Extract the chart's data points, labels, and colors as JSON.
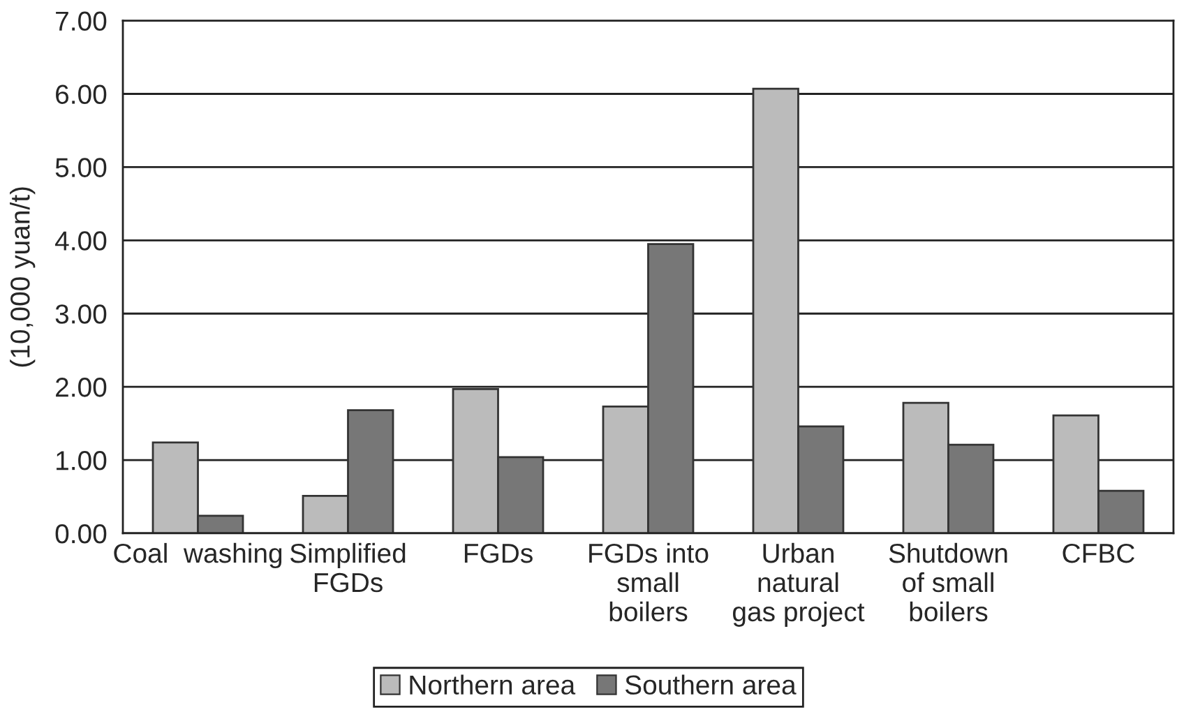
{
  "chart_data": {
    "type": "bar",
    "ylabel": "(10,000 yuan/t)",
    "categories": [
      "Coal  washing",
      "Simplified\nFGDs",
      "FGDs",
      "FGDs into\nsmall\nboilers",
      "Urban\nnatural\ngas project",
      "Shutdown\nof small\nboilers",
      "CFBC"
    ],
    "series": [
      {
        "name": "Northern area",
        "color": "#bbbbbb",
        "values": [
          1.24,
          0.51,
          1.97,
          1.73,
          6.07,
          1.78,
          1.61
        ]
      },
      {
        "name": "Southern area",
        "color": "#777777",
        "values": [
          0.24,
          1.68,
          1.04,
          3.95,
          1.46,
          1.21,
          0.58
        ]
      }
    ],
    "ylim": [
      0,
      7
    ],
    "yticks": [
      {
        "value": 0,
        "label": "0.00"
      },
      {
        "value": 1,
        "label": "1.00"
      },
      {
        "value": 2,
        "label": "2.00"
      },
      {
        "value": 3,
        "label": "3.00"
      },
      {
        "value": 4,
        "label": "4.00"
      },
      {
        "value": 5,
        "label": "5.00"
      },
      {
        "value": 6,
        "label": "6.00"
      },
      {
        "value": 7,
        "label": "7.00"
      }
    ],
    "grid": "y",
    "legend": "bottom"
  }
}
